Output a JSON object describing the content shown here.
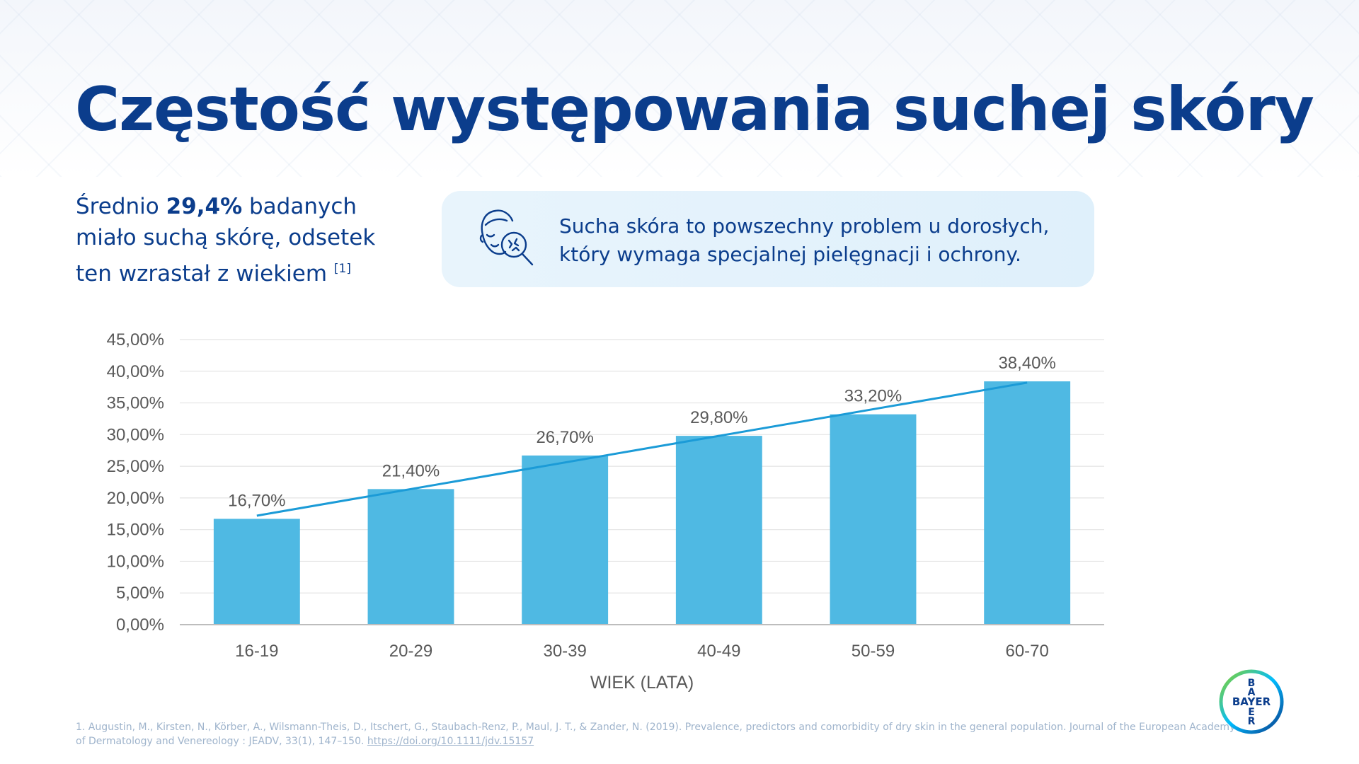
{
  "title": "Częstość występowania suchej skóry",
  "intro": {
    "prefix": "Średnio ",
    "highlight": "29,4%",
    "suffix": " badanych miało suchą skórę, odsetek ten wzrastał z wiekiem ",
    "reference": "[1]"
  },
  "info_box": {
    "icon": "face-magnifier-icon",
    "text": "Sucha skóra to powszechny problem u dorosłych, który wymaga specjalnej pielęgnacji i ochrony."
  },
  "chart_data": {
    "type": "bar",
    "categories": [
      "16-19",
      "20-29",
      "30-39",
      "40-49",
      "50-59",
      "60-70"
    ],
    "values": [
      16.7,
      21.4,
      26.7,
      29.8,
      33.2,
      38.4
    ],
    "data_labels": [
      "16,70%",
      "21,40%",
      "26,70%",
      "29,80%",
      "33,20%",
      "38,40%"
    ],
    "xlabel": "WIEK (LATA)",
    "ylabel": "",
    "ylim": [
      0,
      45
    ],
    "yticks": [
      "0,00%",
      "5,00%",
      "10,00%",
      "15,00%",
      "20,00%",
      "25,00%",
      "30,00%",
      "35,00%",
      "40,00%",
      "45,00%"
    ],
    "trendline": true,
    "grid": true,
    "colors": {
      "bar": "#4fb9e3",
      "trend": "#1b9bd7",
      "grid": "#e4e4e4",
      "axis": "#bdbdbd",
      "text": "#595959"
    }
  },
  "footnote": {
    "text": "1. Augustin, M., Kirsten, N., Körber, A., Wilsmann-Theis, D., Itschert, G., Staubach-Renz, P., Maul, J. T., & Zander, N. (2019). Prevalence, predictors and comorbidity of dry skin in the general population. Journal of the European Academy of Dermatology and Venereology : JEADV, 33(1), 147–150. ",
    "link": "https://doi.org/10.1111/jdv.15157"
  },
  "logo": {
    "text": "BAYER",
    "icon": "bayer-cross-logo"
  }
}
